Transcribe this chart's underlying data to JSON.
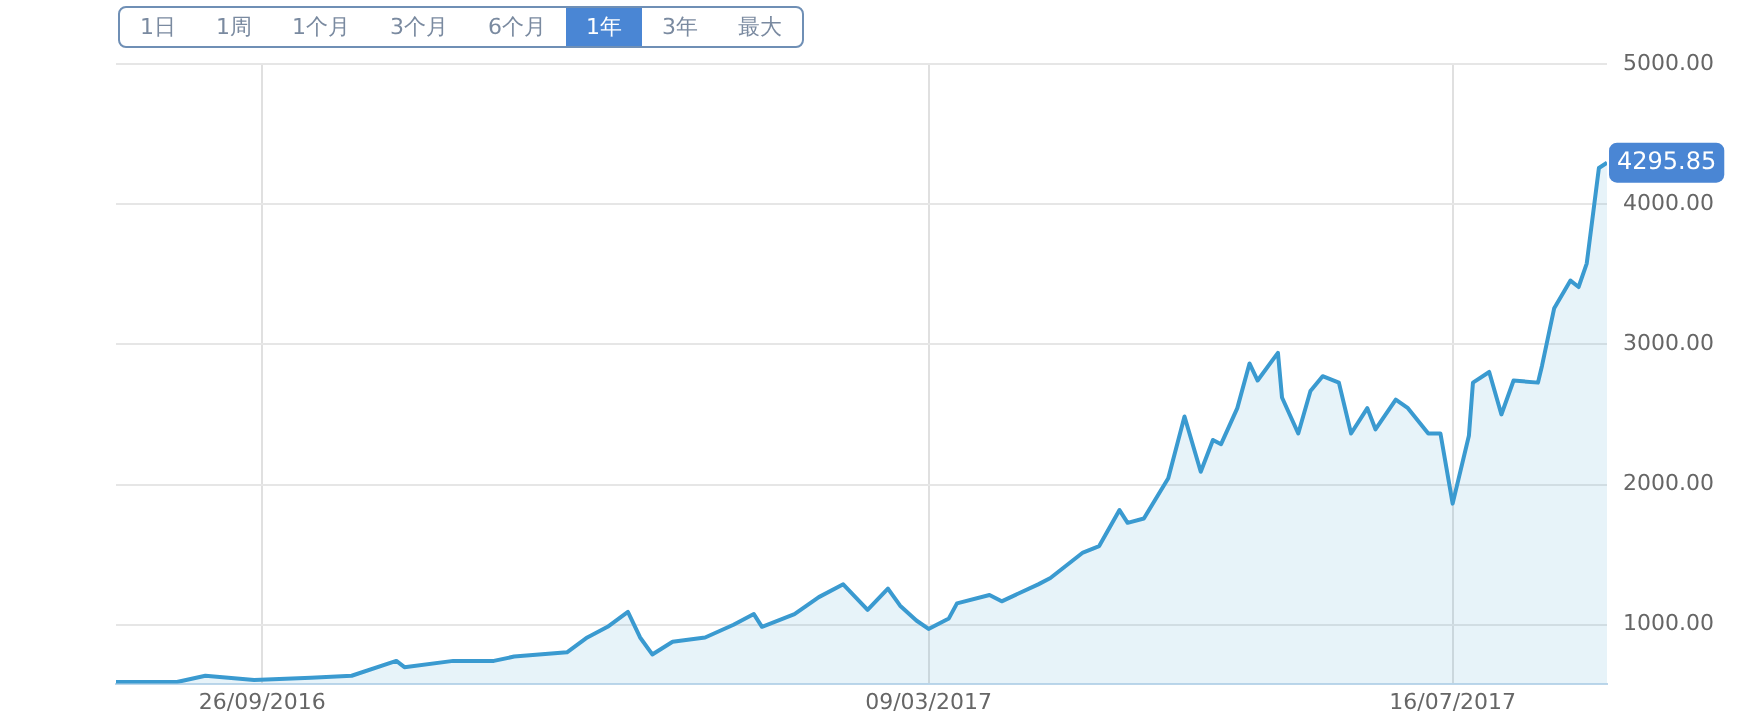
{
  "chart_data": {
    "type": "area",
    "x": [
      "2016-08-21",
      "2016-09-05",
      "2016-09-12",
      "2016-09-24",
      "2016-10-08",
      "2016-10-18",
      "2016-10-29",
      "2016-10-31",
      "2016-11-12",
      "2016-11-22",
      "2016-11-27",
      "2016-12-10",
      "2016-12-15",
      "2016-12-20",
      "2016-12-25",
      "2016-12-28",
      "2016-12-31",
      "2017-01-05",
      "2017-01-13",
      "2017-01-20",
      "2017-01-25",
      "2017-01-27",
      "2017-02-04",
      "2017-02-10",
      "2017-02-16",
      "2017-02-20",
      "2017-02-22",
      "2017-02-27",
      "2017-03-02",
      "2017-03-06",
      "2017-03-09",
      "2017-03-14",
      "2017-03-16",
      "2017-03-24",
      "2017-03-27",
      "2017-04-05",
      "2017-04-08",
      "2017-04-16",
      "2017-04-20",
      "2017-04-25",
      "2017-04-27",
      "2017-05-01",
      "2017-05-07",
      "2017-05-11",
      "2017-05-15",
      "2017-05-18",
      "2017-05-20",
      "2017-05-24",
      "2017-05-27",
      "2017-05-29",
      "2017-06-03",
      "2017-06-04",
      "2017-06-08",
      "2017-06-11",
      "2017-06-14",
      "2017-06-18",
      "2017-06-21",
      "2017-06-25",
      "2017-06-27",
      "2017-07-02",
      "2017-07-05",
      "2017-07-10",
      "2017-07-13",
      "2017-07-16",
      "2017-07-20",
      "2017-07-21",
      "2017-07-25",
      "2017-07-28",
      "2017-07-31",
      "2017-08-06",
      "2017-08-07",
      "2017-08-10",
      "2017-08-14",
      "2017-08-16",
      "2017-08-18",
      "2017-08-21",
      "2017-08-23"
    ],
    "series": [
      {
        "color": "#3a9ad0",
        "values": [
          591,
          591,
          636,
          606,
          621,
          636,
          742,
          697,
          742,
          742,
          773,
          803,
          909,
          985,
          1091,
          909,
          788,
          879,
          909,
          1000,
          1076,
          985,
          1076,
          1197,
          1288,
          1167,
          1106,
          1258,
          1136,
          1030,
          970,
          1045,
          1152,
          1212,
          1167,
          1288,
          1333,
          1515,
          1561,
          1818,
          1727,
          1758,
          2045,
          2485,
          2091,
          2318,
          2288,
          2545,
          2864,
          2742,
          2939,
          2621,
          2364,
          2667,
          2773,
          2727,
          2364,
          2545,
          2394,
          2606,
          2545,
          2364,
          2364,
          1864,
          2348,
          2727,
          2803,
          2500,
          2742,
          2727,
          2848,
          3258,
          3455,
          3409,
          3576,
          4258,
          4295.85
        ]
      }
    ],
    "xlim": [
      "2016-08-21",
      "2017-08-23"
    ],
    "xticks": [
      {
        "value": "2016-09-26",
        "label": "26/09/2016"
      },
      {
        "value": "2017-03-09",
        "label": "09/03/2017"
      },
      {
        "value": "2017-07-16",
        "label": "16/07/2017"
      }
    ],
    "ylim": [
      580,
      5000
    ],
    "yticks": [
      {
        "value": 1000,
        "label": "1000.00"
      },
      {
        "value": 2000,
        "label": "2000.00"
      },
      {
        "value": 3000,
        "label": "3000.00"
      },
      {
        "value": 4000,
        "label": "4000.00"
      },
      {
        "value": 5000,
        "label": "5000.00"
      }
    ],
    "grid": true,
    "legend": false,
    "marker": "none",
    "line_style": "solid",
    "annotations": [
      "1日",
      "1周",
      "1个月",
      "3个月",
      "6个月",
      "1年",
      "3年",
      "最大",
      {
        "text": "4295.85",
        "x": "2017-08-23",
        "y": 4295.85
      }
    ]
  }
}
